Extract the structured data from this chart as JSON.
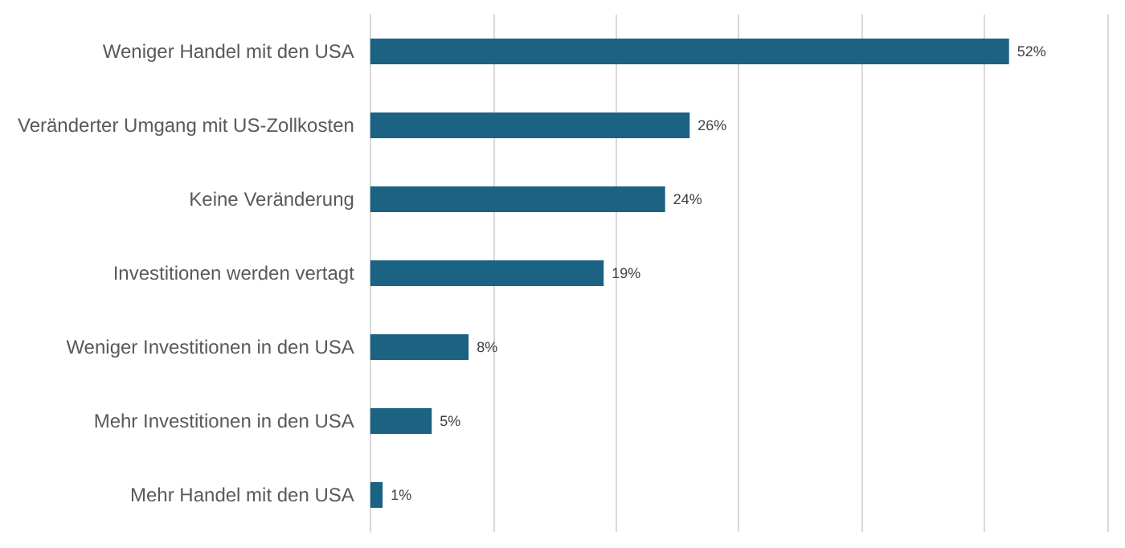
{
  "chart_data": {
    "type": "bar",
    "orientation": "horizontal",
    "categories": [
      "Weniger Handel mit den USA",
      "Veränderter Umgang mit US-Zollkosten",
      "Keine Veränderung",
      "Investitionen werden vertagt",
      "Weniger Investitionen in den USA",
      "Mehr Investitionen in den USA",
      "Mehr Handel mit den USA"
    ],
    "values": [
      52,
      26,
      24,
      19,
      8,
      5,
      1
    ],
    "value_labels": [
      "52%",
      "26%",
      "24%",
      "19%",
      "8%",
      "5%",
      "1%"
    ],
    "color": "#1b6283",
    "xlim": [
      0,
      60
    ],
    "xticks": [
      {
        "value": 0,
        "label": null
      },
      {
        "value": 10,
        "label": null
      },
      {
        "value": 20,
        "label": null
      },
      {
        "value": 30,
        "label": null
      },
      {
        "value": 40,
        "label": null
      },
      {
        "value": 50,
        "label": null
      },
      {
        "value": 60,
        "label": null
      }
    ],
    "grid": "x",
    "tick_labels": "y"
  }
}
